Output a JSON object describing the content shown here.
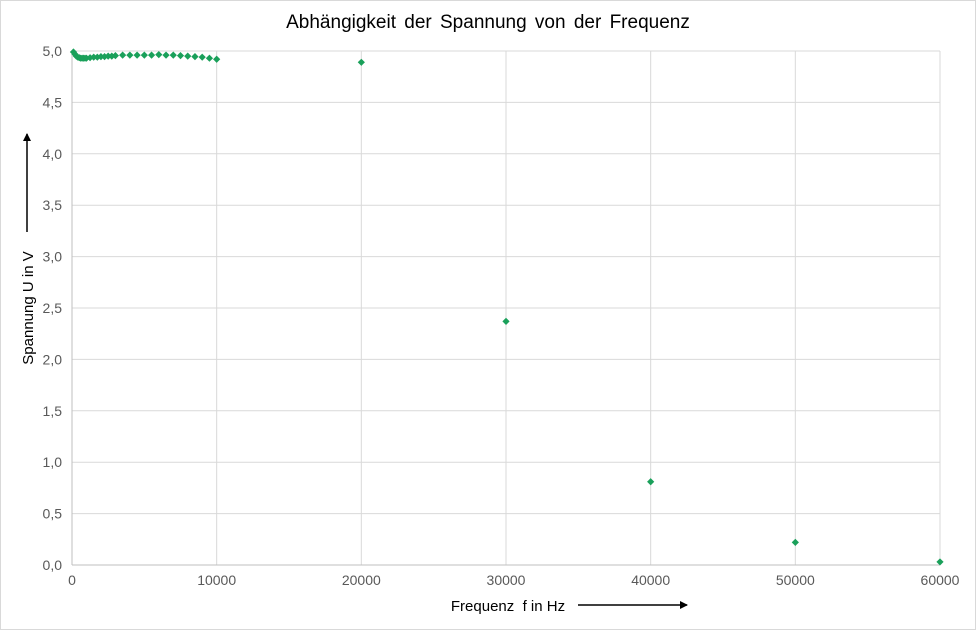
{
  "chart_data": {
    "type": "scatter",
    "title": "Abhängigkeit  der Spannung  von der Frequenz",
    "xlabel": "Frequenz  f in Hz",
    "ylabel": "Spannung U in V",
    "xlim": [
      0,
      60000
    ],
    "ylim": [
      0,
      5
    ],
    "x_ticks": [
      0,
      10000,
      20000,
      30000,
      40000,
      50000,
      60000
    ],
    "x_tick_labels": [
      "0",
      "10000",
      "20000",
      "30000",
      "40000",
      "50000",
      "60000"
    ],
    "y_ticks": [
      0,
      0.5,
      1,
      1.5,
      2,
      2.5,
      3,
      3.5,
      4,
      4.5,
      5
    ],
    "y_tick_labels": [
      "0,0",
      "0,5",
      "1,0",
      "1,5",
      "2,0",
      "2,5",
      "3,0",
      "3,5",
      "4,0",
      "4,5",
      "5,0"
    ],
    "grid": true,
    "legend": "none",
    "marker": "diamond",
    "color": "#1aa05a",
    "points": [
      {
        "x": 100,
        "y": 4.99
      },
      {
        "x": 200,
        "y": 4.97
      },
      {
        "x": 300,
        "y": 4.95
      },
      {
        "x": 400,
        "y": 4.94
      },
      {
        "x": 500,
        "y": 4.935
      },
      {
        "x": 600,
        "y": 4.93
      },
      {
        "x": 700,
        "y": 4.93
      },
      {
        "x": 800,
        "y": 4.93
      },
      {
        "x": 900,
        "y": 4.93
      },
      {
        "x": 1000,
        "y": 4.93
      },
      {
        "x": 1250,
        "y": 4.935
      },
      {
        "x": 1500,
        "y": 4.94
      },
      {
        "x": 1750,
        "y": 4.94
      },
      {
        "x": 2000,
        "y": 4.945
      },
      {
        "x": 2250,
        "y": 4.945
      },
      {
        "x": 2500,
        "y": 4.95
      },
      {
        "x": 2750,
        "y": 4.95
      },
      {
        "x": 3000,
        "y": 4.955
      },
      {
        "x": 3500,
        "y": 4.96
      },
      {
        "x": 4000,
        "y": 4.96
      },
      {
        "x": 4500,
        "y": 4.96
      },
      {
        "x": 5000,
        "y": 4.96
      },
      {
        "x": 5500,
        "y": 4.96
      },
      {
        "x": 6000,
        "y": 4.965
      },
      {
        "x": 6500,
        "y": 4.96
      },
      {
        "x": 7000,
        "y": 4.96
      },
      {
        "x": 7500,
        "y": 4.955
      },
      {
        "x": 8000,
        "y": 4.95
      },
      {
        "x": 8500,
        "y": 4.945
      },
      {
        "x": 9000,
        "y": 4.94
      },
      {
        "x": 9500,
        "y": 4.93
      },
      {
        "x": 10000,
        "y": 4.92
      },
      {
        "x": 20000,
        "y": 4.89
      },
      {
        "x": 30000,
        "y": 2.37
      },
      {
        "x": 40000,
        "y": 0.81
      },
      {
        "x": 50000,
        "y": 0.22
      },
      {
        "x": 60000,
        "y": 0.03
      }
    ]
  }
}
